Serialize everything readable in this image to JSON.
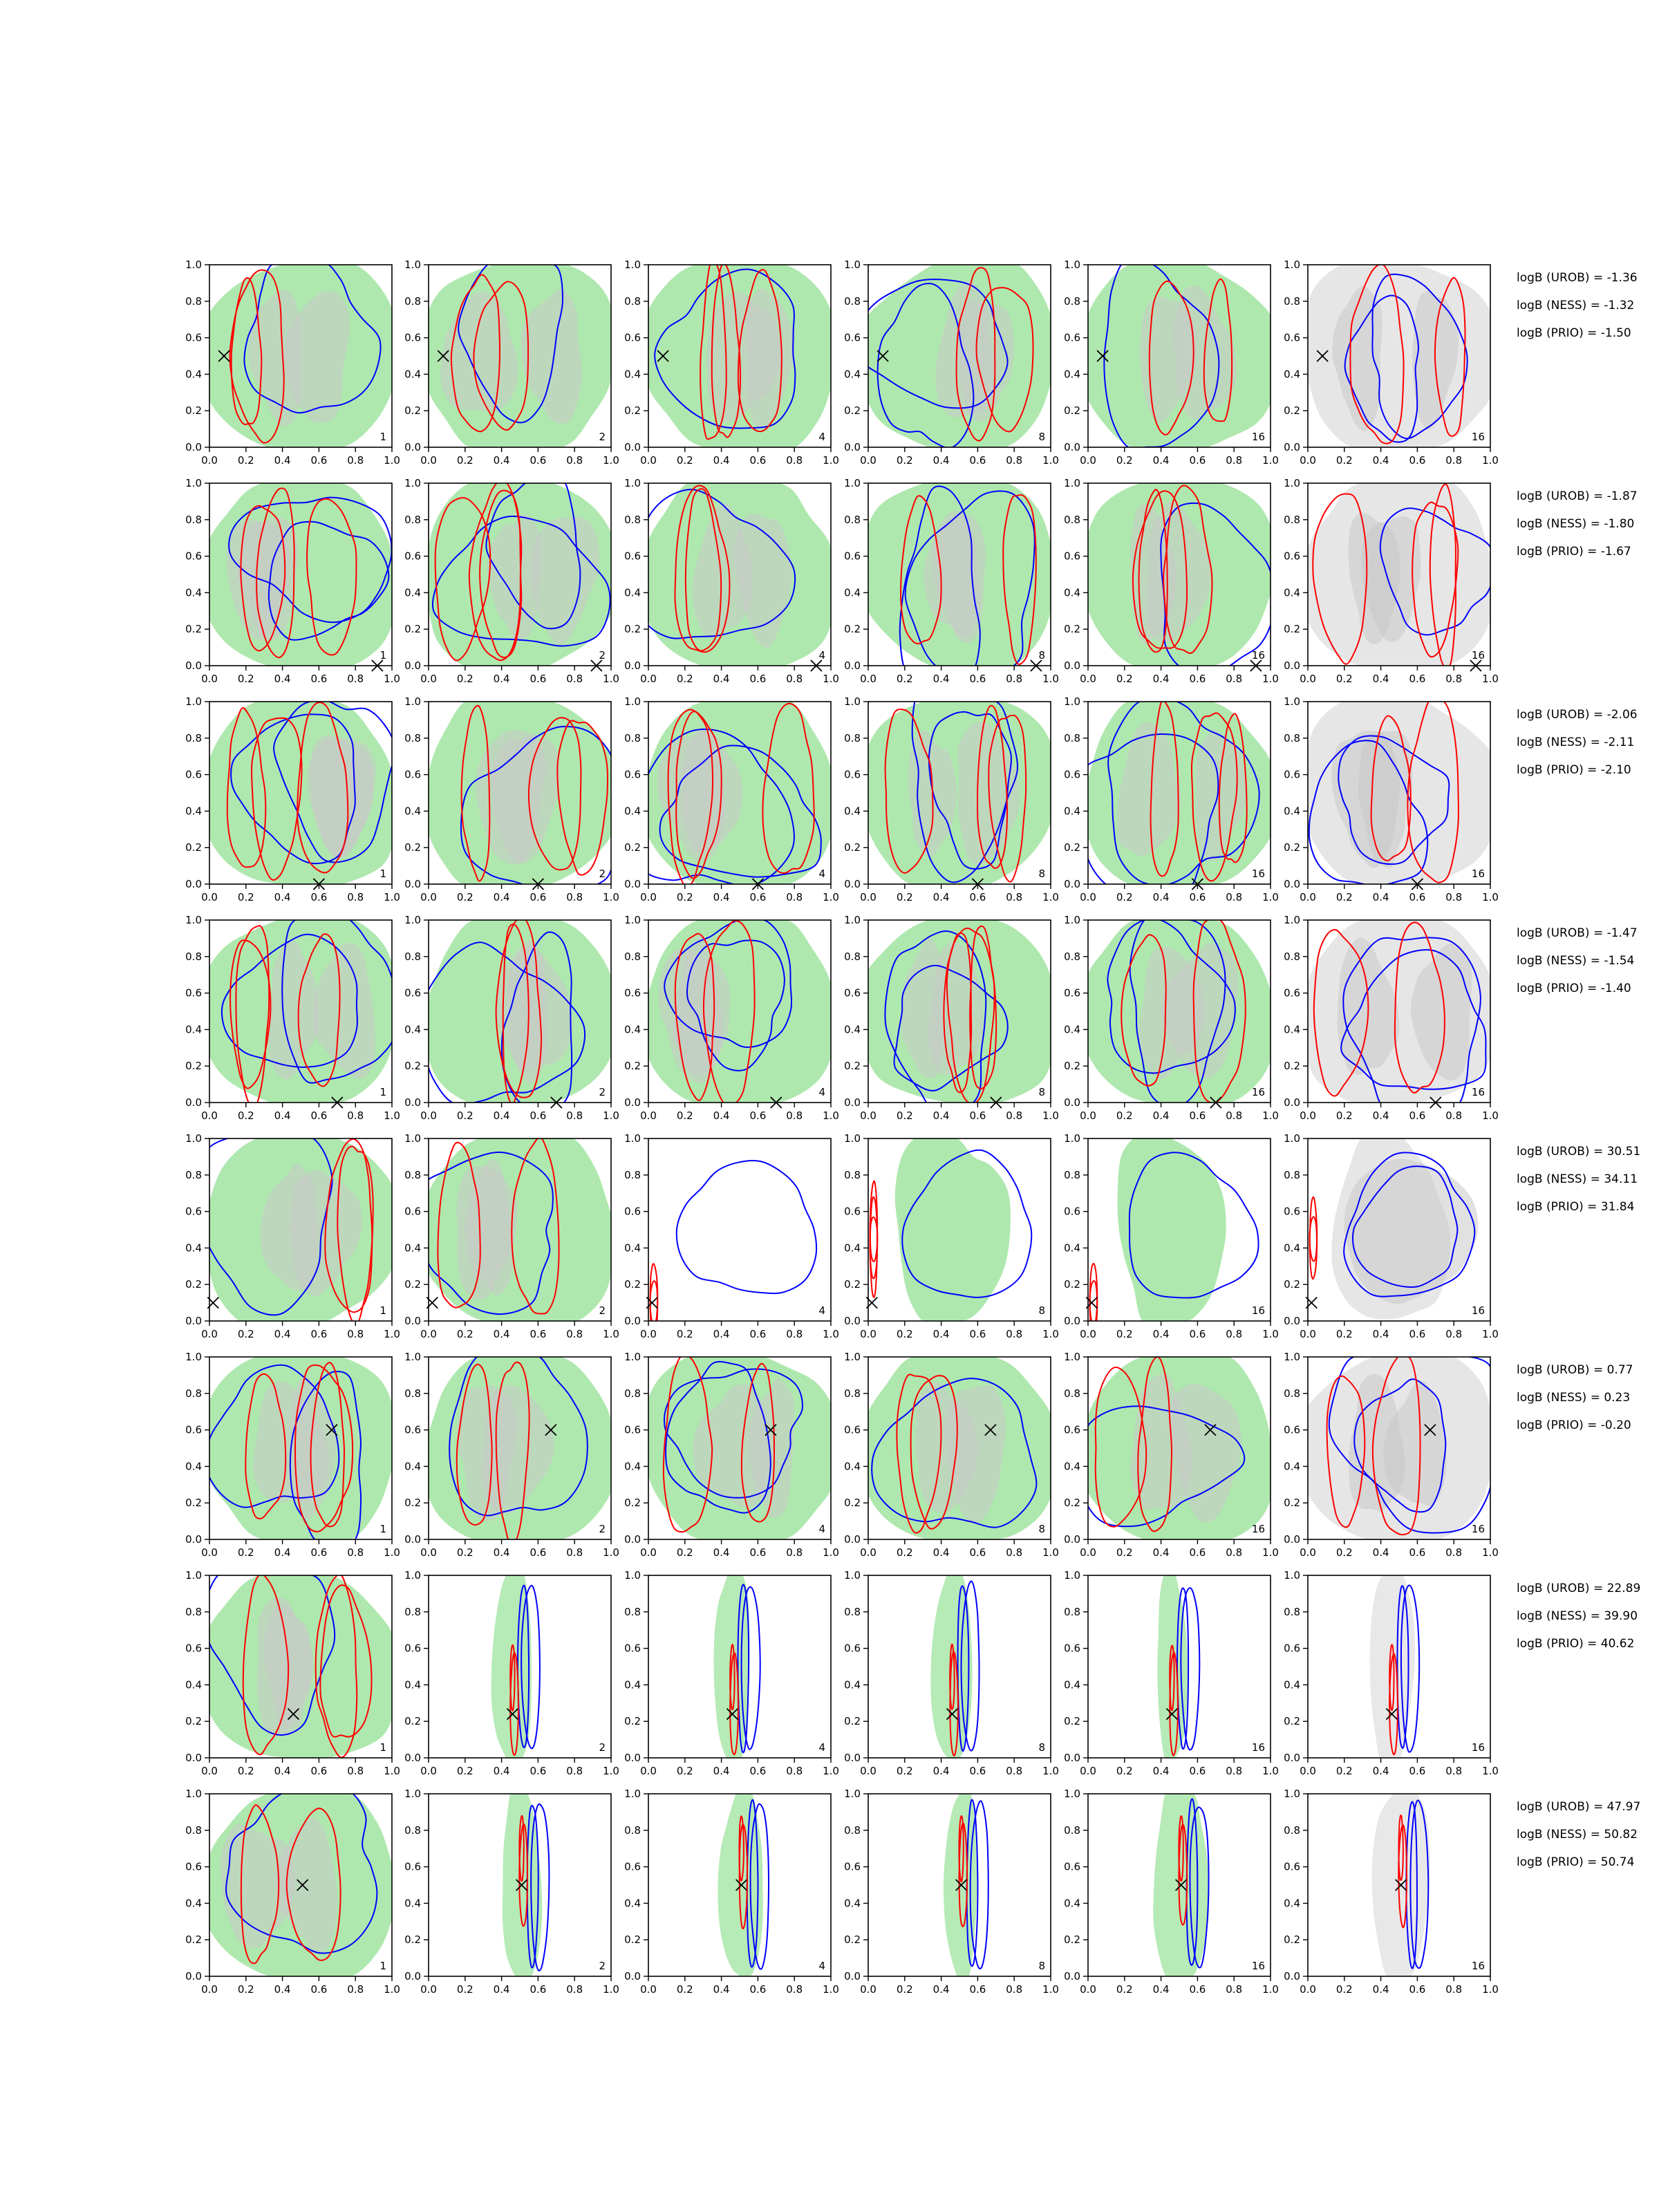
{
  "figure": {
    "rows": 8,
    "cols": 6,
    "colors": {
      "green": "#aee8ae",
      "gray_light": "#e6e6e6",
      "gray_dark": "#c8c8c8",
      "red": "#ff0000",
      "blue": "#0000ff",
      "marker": "#000000"
    }
  },
  "chart_data": {
    "type": "contour",
    "xlim": [
      0,
      1
    ],
    "ylim": [
      0,
      1
    ],
    "ticks": [
      "0.0",
      "0.2",
      "0.4",
      "0.6",
      "0.8",
      "1.0"
    ],
    "panel_labels": [
      "1",
      "2",
      "4",
      "8",
      "16",
      "16"
    ],
    "rows": [
      {
        "truth": {
          "x": 0.08,
          "y": 0.5
        },
        "logB": [
          "logB (UROB) = -1.36",
          "logB (NESS) = -1.32",
          "logB (PRIO) = -1.50"
        ]
      },
      {
        "truth": {
          "x": 0.92,
          "y": 0.0
        },
        "logB": [
          "logB (UROB) = -1.87",
          "logB (NESS) = -1.80",
          "logB (PRIO) = -1.67"
        ]
      },
      {
        "truth": {
          "x": 0.6,
          "y": 0.0
        },
        "logB": [
          "logB (UROB) = -2.06",
          "logB (NESS) = -2.11",
          "logB (PRIO) = -2.10"
        ]
      },
      {
        "truth": {
          "x": 0.7,
          "y": 0.0
        },
        "logB": [
          "logB (UROB) = -1.47",
          "logB (NESS) = -1.54",
          "logB (PRIO) = -1.40"
        ]
      },
      {
        "truth": {
          "x": 0.02,
          "y": 0.1
        },
        "logB": [
          "logB (UROB) = 30.51",
          "logB (NESS) = 34.11",
          "logB (PRIO) = 31.84"
        ]
      },
      {
        "truth": {
          "x": 0.67,
          "y": 0.6
        },
        "logB": [
          "logB (UROB) = 0.77",
          "logB (NESS) = 0.23",
          "logB (PRIO) = -0.20"
        ]
      },
      {
        "truth": {
          "x": 0.46,
          "y": 0.24
        },
        "logB": [
          "logB (UROB) = 22.89",
          "logB (NESS) = 39.90",
          "logB (PRIO) = 40.62"
        ]
      },
      {
        "truth": {
          "x": 0.51,
          "y": 0.5
        },
        "logB": [
          "logB (UROB) = 47.97",
          "logB (NESS) = 50.82",
          "logB (PRIO) = 50.74"
        ]
      }
    ]
  }
}
